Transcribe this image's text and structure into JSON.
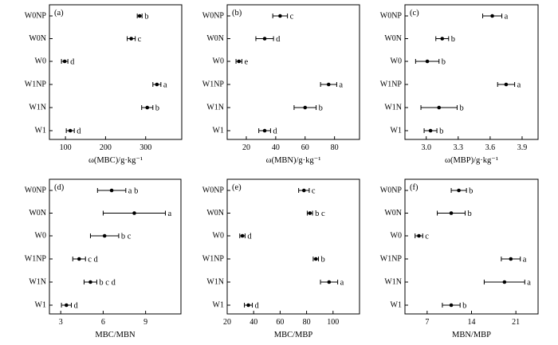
{
  "chart_data": [
    {
      "type": "scatter",
      "panel_label": "(a)",
      "xlabel": "ω(MBC)/g·kg⁻¹",
      "categories": [
        "W0NP",
        "W0N",
        "W0",
        "W1NP",
        "W1N",
        "W1"
      ],
      "xlim": [
        60,
        390
      ],
      "xticks": [
        100,
        200,
        300
      ],
      "points": [
        {
          "cat": "W0NP",
          "value": 285,
          "err": 6,
          "sig": "b"
        },
        {
          "cat": "W0N",
          "value": 264,
          "err": 10,
          "sig": "c"
        },
        {
          "cat": "W0",
          "value": 98,
          "err": 8,
          "sig": "d"
        },
        {
          "cat": "W1NP",
          "value": 328,
          "err": 10,
          "sig": "a"
        },
        {
          "cat": "W1N",
          "value": 304,
          "err": 14,
          "sig": "b"
        },
        {
          "cat": "W1",
          "value": 112,
          "err": 10,
          "sig": "d"
        }
      ]
    },
    {
      "type": "scatter",
      "panel_label": "(b)",
      "xlabel": "ω(MBN)/g·kg⁻¹",
      "categories": [
        "W0NP",
        "W0N",
        "W0",
        "W1NP",
        "W1N",
        "W1"
      ],
      "xlim": [
        7,
        97
      ],
      "xticks": [
        20,
        40,
        60,
        80
      ],
      "points": [
        {
          "cat": "W0NP",
          "value": 43,
          "err": 5,
          "sig": "c"
        },
        {
          "cat": "W0N",
          "value": 32.5,
          "err": 6,
          "sig": "d"
        },
        {
          "cat": "W0",
          "value": 15,
          "err": 2,
          "sig": "e"
        },
        {
          "cat": "W1NP",
          "value": 76,
          "err": 5.5,
          "sig": "a"
        },
        {
          "cat": "W1N",
          "value": 60,
          "err": 7.5,
          "sig": "b"
        },
        {
          "cat": "W1",
          "value": 32.5,
          "err": 4,
          "sig": "d"
        }
      ]
    },
    {
      "type": "scatter",
      "panel_label": "(c)",
      "xlabel": "ω(MBP)/g·kg⁻¹",
      "categories": [
        "W0NP",
        "W0N",
        "W0",
        "W1NP",
        "W1N",
        "W1"
      ],
      "xlim": [
        2.8,
        4.05
      ],
      "xticks": [
        3.0,
        3.3,
        3.6,
        3.9
      ],
      "xtick_labels": [
        "3.0",
        "3.3",
        "3.6",
        "3.9"
      ],
      "points": [
        {
          "cat": "W0NP",
          "value": 3.62,
          "err": 0.09,
          "sig": "a"
        },
        {
          "cat": "W0N",
          "value": 3.15,
          "err": 0.06,
          "sig": "b"
        },
        {
          "cat": "W0",
          "value": 3.01,
          "err": 0.11,
          "sig": "b"
        },
        {
          "cat": "W1NP",
          "value": 3.75,
          "err": 0.08,
          "sig": "a"
        },
        {
          "cat": "W1N",
          "value": 3.12,
          "err": 0.17,
          "sig": "b"
        },
        {
          "cat": "W1",
          "value": 3.04,
          "err": 0.06,
          "sig": "b"
        }
      ]
    },
    {
      "type": "scatter",
      "panel_label": "(d)",
      "xlabel": "MBC/MBN",
      "categories": [
        "W0NP",
        "W0N",
        "W0",
        "W1NP",
        "W1N",
        "W1"
      ],
      "xlim": [
        2.2,
        11.5
      ],
      "xticks": [
        3,
        6,
        9
      ],
      "points": [
        {
          "cat": "W0NP",
          "value": 6.6,
          "err": 1.0,
          "sig": "ab"
        },
        {
          "cat": "W0N",
          "value": 8.2,
          "err": 2.2,
          "sig": "a"
        },
        {
          "cat": "W0",
          "value": 6.1,
          "err": 1.0,
          "sig": "bc"
        },
        {
          "cat": "W1NP",
          "value": 4.3,
          "err": 0.45,
          "sig": "cd"
        },
        {
          "cat": "W1N",
          "value": 5.1,
          "err": 0.45,
          "sig": "bcd"
        },
        {
          "cat": "W1",
          "value": 3.4,
          "err": 0.35,
          "sig": "d"
        }
      ]
    },
    {
      "type": "scatter",
      "panel_label": "(e)",
      "xlabel": "MBC/MBP",
      "categories": [
        "W0NP",
        "W0N",
        "W0",
        "W1NP",
        "W1N",
        "W1"
      ],
      "xlim": [
        20,
        120
      ],
      "xticks": [
        20,
        40,
        60,
        80,
        100
      ],
      "points": [
        {
          "cat": "W0NP",
          "value": 78,
          "err": 4,
          "sig": "c"
        },
        {
          "cat": "W0N",
          "value": 82.5,
          "err": 2,
          "sig": "bc"
        },
        {
          "cat": "W0",
          "value": 31.5,
          "err": 2,
          "sig": "d"
        },
        {
          "cat": "W1NP",
          "value": 87,
          "err": 2,
          "sig": "b"
        },
        {
          "cat": "W1N",
          "value": 97,
          "err": 6.5,
          "sig": "a"
        },
        {
          "cat": "W1",
          "value": 36,
          "err": 3,
          "sig": "d"
        }
      ]
    },
    {
      "type": "scatter",
      "panel_label": "(f)",
      "xlabel": "MBN/MBP",
      "categories": [
        "W0NP",
        "W0N",
        "W0",
        "W1NP",
        "W1N",
        "W1"
      ],
      "xlim": [
        3.5,
        24.5
      ],
      "xticks": [
        7,
        14,
        21
      ],
      "points": [
        {
          "cat": "W0NP",
          "value": 12,
          "err": 1.2,
          "sig": "b"
        },
        {
          "cat": "W0N",
          "value": 10.8,
          "err": 2.2,
          "sig": "b"
        },
        {
          "cat": "W0",
          "value": 5.7,
          "err": 0.6,
          "sig": "c"
        },
        {
          "cat": "W1NP",
          "value": 20.2,
          "err": 1.5,
          "sig": "a"
        },
        {
          "cat": "W1N",
          "value": 19.2,
          "err": 3.2,
          "sig": "a"
        },
        {
          "cat": "W1",
          "value": 10.8,
          "err": 1.4,
          "sig": "b"
        }
      ]
    }
  ]
}
